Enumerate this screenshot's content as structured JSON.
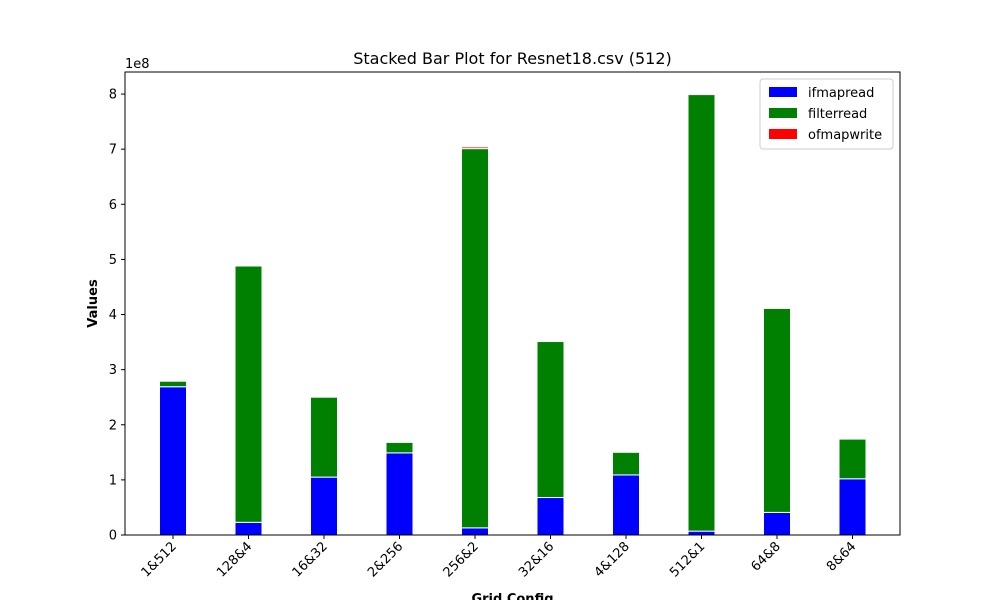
{
  "chart_data": {
    "type": "bar",
    "stacked": true,
    "title": "Stacked Bar Plot for Resnet18.csv (512)",
    "xlabel": "Grid Config",
    "ylabel": "Values",
    "y_multiplier_label": "1e8",
    "ylim": [
      0,
      8.4
    ],
    "yticks": [
      0,
      1,
      2,
      3,
      4,
      5,
      6,
      7,
      8
    ],
    "grid": false,
    "legend_position": "top-right",
    "categories": [
      "1&512",
      "128&4",
      "16&32",
      "2&256",
      "256&2",
      "32&16",
      "4&128",
      "512&1",
      "64&8",
      "8&64"
    ],
    "series": [
      {
        "name": "ifmapread",
        "color": "#0000ff",
        "values": [
          2.69,
          0.23,
          1.05,
          1.49,
          0.13,
          0.68,
          1.09,
          0.07,
          0.41,
          1.02
        ]
      },
      {
        "name": "filterread",
        "color": "#008000",
        "values": [
          0.1,
          4.65,
          1.45,
          0.19,
          6.88,
          2.83,
          0.41,
          7.92,
          3.7,
          0.72
        ]
      },
      {
        "name": "ofmapwrite",
        "color": "#ff0000",
        "values": [
          0.0,
          0.0,
          0.0,
          0.0,
          0.03,
          0.0,
          0.0,
          0.0,
          0.0,
          0.0
        ]
      }
    ]
  }
}
